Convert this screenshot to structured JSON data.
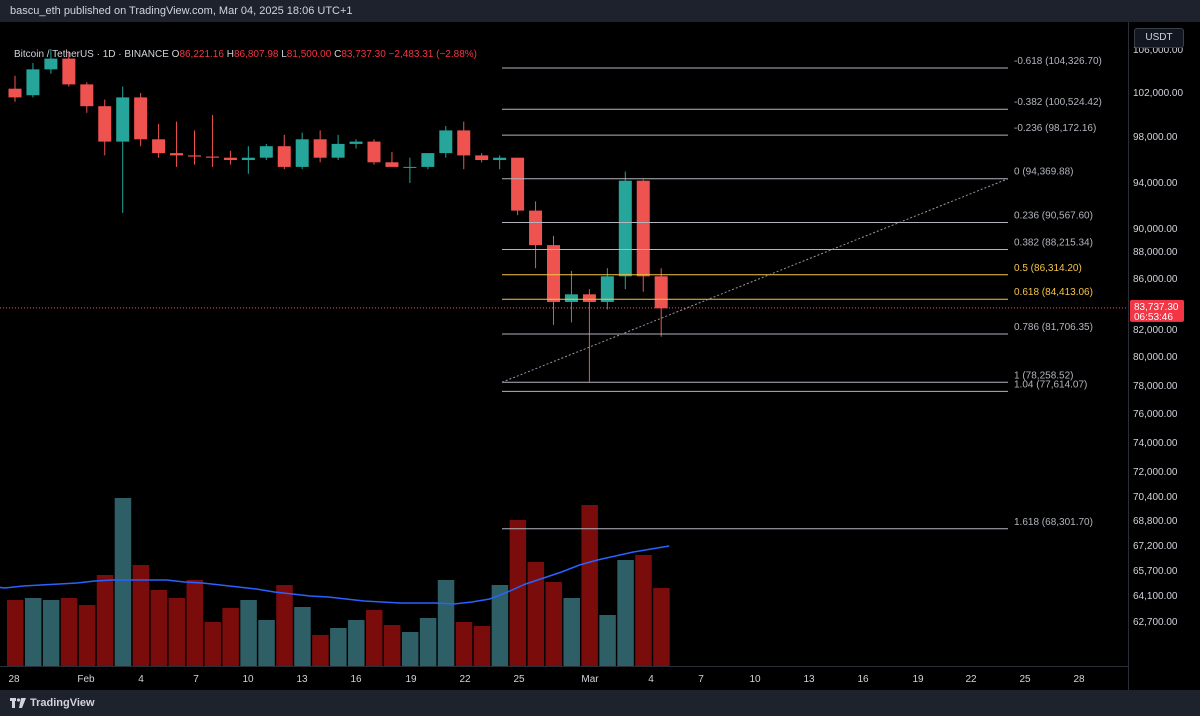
{
  "header": {
    "published_line": "bascu_eth published on TradingView.com, Mar 04, 2025 18:06 UTC+1"
  },
  "legend": {
    "symbol": "Bitcoin / TetherUS · 1D · BINANCE",
    "open_label": "O",
    "open": "86,221.16",
    "high_label": "H",
    "high": "86,807.98",
    "low_label": "L",
    "low": "81,500.00",
    "close_label": "C",
    "close": "83,737.30",
    "change": "−2,483.31 (−2.88%)"
  },
  "currency_button": "USDT",
  "last_price": {
    "value": "83,737.30",
    "countdown": "06:53:46"
  },
  "footer": {
    "brand": "TradingView"
  },
  "colors": {
    "up": "#26a69a",
    "down": "#ef5350",
    "vol_up": "#2e5f66",
    "vol_down": "#7a0c0c",
    "fib_line": "#b2b5be",
    "fib_highlight": "#f5c542",
    "vol_ma": "#2962ff",
    "background": "#000000"
  },
  "chart_data": {
    "type": "candlestick",
    "title": "Bitcoin / TetherUS · 1D · BINANCE",
    "price_axis_ticks": [
      "106,000.00",
      "102,000.00",
      "98,000.00",
      "94,000.00",
      "90,000.00",
      "88,000.00",
      "86,000.00",
      "82,000.00",
      "80,000.00",
      "78,000.00",
      "76,000.00",
      "74,000.00",
      "72,000.00",
      "70,400.00",
      "68,800.00",
      "67,200.00",
      "65,700.00",
      "64,100.00",
      "62,700.00"
    ],
    "time_axis_ticks": [
      "28",
      "Feb",
      "4",
      "7",
      "10",
      "13",
      "16",
      "19",
      "22",
      "25",
      "Mar",
      "4",
      "7",
      "10",
      "13",
      "16",
      "19",
      "22",
      "25",
      "28"
    ],
    "candles": [
      {
        "o": 102400,
        "h": 103600,
        "l": 101200,
        "c": 101600
      },
      {
        "o": 101800,
        "h": 104800,
        "l": 101600,
        "c": 104200
      },
      {
        "o": 104200,
        "h": 106100,
        "l": 103800,
        "c": 105200
      },
      {
        "o": 105200,
        "h": 105800,
        "l": 102600,
        "c": 102800
      },
      {
        "o": 102800,
        "h": 103000,
        "l": 100200,
        "c": 100800
      },
      {
        "o": 100800,
        "h": 101400,
        "l": 96400,
        "c": 97600
      },
      {
        "o": 97600,
        "h": 102600,
        "l": 91400,
        "c": 101600
      },
      {
        "o": 101600,
        "h": 102000,
        "l": 97200,
        "c": 97800
      },
      {
        "o": 97800,
        "h": 99200,
        "l": 96200,
        "c": 96600
      },
      {
        "o": 96600,
        "h": 99400,
        "l": 95400,
        "c": 96400
      },
      {
        "o": 96400,
        "h": 98600,
        "l": 95600,
        "c": 96300
      },
      {
        "o": 96300,
        "h": 100000,
        "l": 95400,
        "c": 96200
      },
      {
        "o": 96200,
        "h": 96800,
        "l": 95600,
        "c": 96000
      },
      {
        "o": 96000,
        "h": 97200,
        "l": 94800,
        "c": 96200
      },
      {
        "o": 96200,
        "h": 97400,
        "l": 96000,
        "c": 97200
      },
      {
        "o": 97200,
        "h": 98200,
        "l": 95200,
        "c": 95400
      },
      {
        "o": 95400,
        "h": 98400,
        "l": 95200,
        "c": 97800
      },
      {
        "o": 97800,
        "h": 98600,
        "l": 95800,
        "c": 96200
      },
      {
        "o": 96200,
        "h": 98200,
        "l": 96000,
        "c": 97400
      },
      {
        "o": 97400,
        "h": 97800,
        "l": 97000,
        "c": 97600
      },
      {
        "o": 97600,
        "h": 97800,
        "l": 95600,
        "c": 95800
      },
      {
        "o": 95800,
        "h": 96700,
        "l": 95400,
        "c": 95400
      },
      {
        "o": 95400,
        "h": 96200,
        "l": 94000,
        "c": 95400
      },
      {
        "o": 95400,
        "h": 96600,
        "l": 95200,
        "c": 96600
      },
      {
        "o": 96600,
        "h": 99000,
        "l": 96200,
        "c": 98600
      },
      {
        "o": 98600,
        "h": 99400,
        "l": 95200,
        "c": 96400
      },
      {
        "o": 96400,
        "h": 96600,
        "l": 95800,
        "c": 96000
      },
      {
        "o": 96000,
        "h": 96400,
        "l": 95200,
        "c": 96200
      },
      {
        "o": 96200,
        "h": 96200,
        "l": 91200,
        "c": 91600
      },
      {
        "o": 91600,
        "h": 92400,
        "l": 86800,
        "c": 88600
      },
      {
        "o": 88600,
        "h": 89400,
        "l": 82400,
        "c": 84200
      },
      {
        "o": 84200,
        "h": 86600,
        "l": 82600,
        "c": 84800
      },
      {
        "o": 84800,
        "h": 85200,
        "l": 78300,
        "c": 84200
      },
      {
        "o": 84200,
        "h": 86800,
        "l": 83600,
        "c": 86200
      },
      {
        "o": 86200,
        "h": 95000,
        "l": 85200,
        "c": 94200
      },
      {
        "o": 94200,
        "h": 94300,
        "l": 85000,
        "c": 86200
      },
      {
        "o": 86200,
        "h": 86800,
        "l": 81500,
        "c": 83700
      }
    ],
    "volume_ma_values": [
      66000,
      65700,
      64900,
      64900,
      64700,
      64600,
      64600,
      64800,
      65000,
      65400,
      65500,
      65400,
      65400,
      65400,
      65300,
      65300,
      65200,
      65200,
      65200,
      65100,
      64800,
      64600,
      64400,
      64300,
      64200,
      64100,
      64000,
      64000,
      64000,
      64000,
      64100,
      64300,
      64600,
      64900,
      65300,
      65800,
      66400,
      66800,
      67100,
      67500,
      67800,
      68100
    ],
    "fib_levels": [
      {
        "label": "-0.618 (104,326.70)",
        "price": 104326.7,
        "highlight": false
      },
      {
        "label": "-0.382 (100,524.42)",
        "price": 100524.42,
        "highlight": false
      },
      {
        "label": "-0.236 (98,172.16)",
        "price": 98172.16,
        "highlight": false
      },
      {
        "label": "0 (94,369.88)",
        "price": 94369.88,
        "highlight": false
      },
      {
        "label": "0.236 (90,567.60)",
        "price": 90567.6,
        "highlight": false
      },
      {
        "label": "0.382 (88,215.34)",
        "price": 88215.34,
        "highlight": false
      },
      {
        "label": "0.5 (86,314.20)",
        "price": 86314.2,
        "highlight": true
      },
      {
        "label": "0.618 (84,413.06)",
        "price": 84413.06,
        "highlight": true
      },
      {
        "label": "0.786 (81,706.35)",
        "price": 81706.35,
        "highlight": false
      },
      {
        "label": "1 (78,258.52)",
        "price": 78258.52,
        "highlight": false
      },
      {
        "label": "1.04 (77,614.07)",
        "price": 77614.07,
        "highlight": false
      },
      {
        "label": "1.618 (68,301.70)",
        "price": 68301.7,
        "highlight": false
      }
    ],
    "trend_line": {
      "from_price": 78258.52,
      "to_price": 94369.88
    },
    "last_price_value": 83737.3
  }
}
